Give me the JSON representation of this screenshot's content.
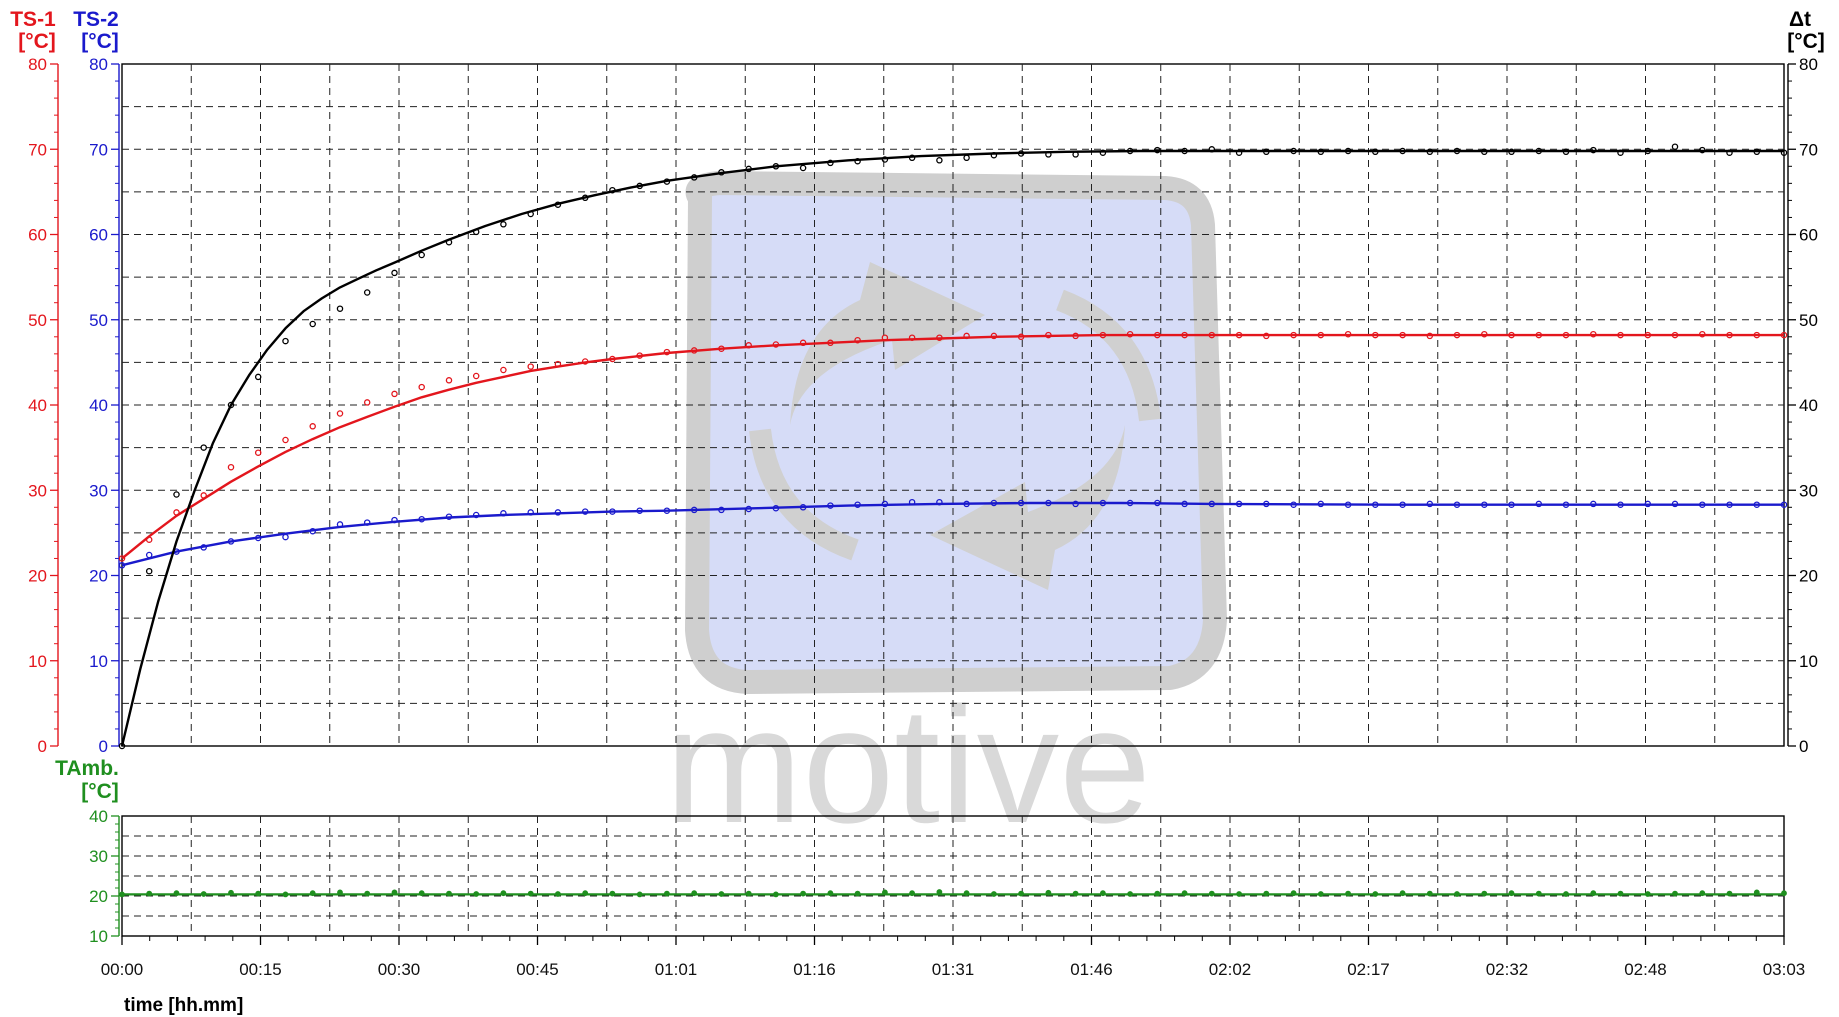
{
  "chart_data": [
    {
      "type": "line",
      "colors": {
        "ts1": "#e3161d",
        "ts2": "#1a1acc",
        "dt": "#000000"
      },
      "axes": {
        "ts1": {
          "title": [
            "TS-1",
            "[°C]"
          ],
          "ticks": [
            "0",
            "10",
            "20",
            "30",
            "40",
            "50",
            "60",
            "70",
            "80"
          ],
          "range": [
            0,
            80
          ]
        },
        "ts2": {
          "title": [
            "TS-2",
            "[°C]"
          ],
          "ticks": [
            "0",
            "10",
            "20",
            "30",
            "40",
            "50",
            "60",
            "70",
            "80"
          ],
          "range": [
            0,
            80
          ]
        },
        "dt": {
          "title": [
            "Δt",
            "[°C]"
          ],
          "ticks": [
            "0",
            "10",
            "20",
            "30",
            "40",
            "50",
            "60",
            "70",
            "80"
          ],
          "range": [
            0,
            80
          ]
        }
      },
      "xlabel": "time [hh.mm]",
      "x_ticks": [
        "00:00",
        "00:15",
        "00:30",
        "00:45",
        "01:01",
        "01:16",
        "01:31",
        "01:46",
        "02:02",
        "02:17",
        "02:32",
        "02:48",
        "03:03"
      ],
      "x_range_min": [
        0,
        183
      ],
      "grid": true,
      "watermark": "motive",
      "series": [
        {
          "key": "ts1",
          "fit_x": [
            0,
            3,
            6,
            9,
            12,
            15,
            18,
            21,
            24,
            27,
            30,
            33,
            36,
            39,
            42,
            45,
            48,
            51,
            54,
            60,
            66,
            72,
            78,
            84,
            90,
            96,
            102,
            108,
            120,
            140,
            160,
            183
          ],
          "fit_values": [
            22,
            24.6,
            27,
            29,
            31,
            32.8,
            34.5,
            36,
            37.4,
            38.6,
            39.8,
            40.9,
            41.8,
            42.6,
            43.3,
            44,
            44.5,
            45,
            45.4,
            46.1,
            46.6,
            47,
            47.3,
            47.6,
            47.8,
            48,
            48.1,
            48.2,
            48.2,
            48.2,
            48.2,
            48.2
          ],
          "points_x": [
            0,
            3,
            6,
            9,
            12,
            15,
            18,
            21,
            24,
            27,
            30,
            33,
            36,
            39,
            42,
            45,
            48,
            51,
            54,
            57,
            60,
            63,
            66,
            69,
            72,
            75,
            78,
            81,
            84,
            87,
            90,
            93,
            96,
            99,
            102,
            105,
            108,
            111,
            114,
            117,
            120,
            123,
            126,
            129,
            132,
            135,
            138,
            141,
            144,
            147,
            150,
            153,
            156,
            159,
            162,
            165,
            168,
            171,
            174,
            177,
            180,
            183
          ],
          "points_values": [
            22,
            24.2,
            27.4,
            29.4,
            32.7,
            34.4,
            35.9,
            37.5,
            39,
            40.3,
            41.3,
            42.1,
            42.9,
            43.4,
            44.1,
            44.5,
            44.8,
            45.1,
            45.4,
            45.8,
            46.2,
            46.4,
            46.6,
            47,
            47.1,
            47.3,
            47.3,
            47.6,
            47.9,
            47.9,
            47.9,
            48.1,
            48.1,
            48,
            48.2,
            48.1,
            48.2,
            48.3,
            48.2,
            48.2,
            48.2,
            48.2,
            48.1,
            48.2,
            48.2,
            48.3,
            48.2,
            48.2,
            48.1,
            48.2,
            48.3,
            48.2,
            48.2,
            48.2,
            48.3,
            48.2,
            48.2,
            48.2,
            48.3,
            48.2,
            48.2,
            48.2
          ]
        },
        {
          "key": "ts2",
          "fit_x": [
            0,
            6,
            12,
            18,
            24,
            30,
            36,
            42,
            48,
            54,
            60,
            70,
            80,
            90,
            100,
            110,
            120,
            140,
            160,
            183
          ],
          "fit_values": [
            21.2,
            22.8,
            24,
            24.9,
            25.7,
            26.3,
            26.8,
            27.1,
            27.3,
            27.5,
            27.6,
            27.9,
            28.2,
            28.4,
            28.5,
            28.5,
            28.4,
            28.3,
            28.3,
            28.3
          ],
          "points_x": [
            0,
            3,
            6,
            9,
            12,
            15,
            18,
            21,
            24,
            27,
            30,
            33,
            36,
            39,
            42,
            45,
            48,
            51,
            54,
            57,
            60,
            63,
            66,
            69,
            72,
            75,
            78,
            81,
            84,
            87,
            90,
            93,
            96,
            99,
            102,
            105,
            108,
            111,
            114,
            117,
            120,
            123,
            126,
            129,
            132,
            135,
            138,
            141,
            144,
            147,
            150,
            153,
            156,
            159,
            162,
            165,
            168,
            171,
            174,
            177,
            180,
            183
          ],
          "points_values": [
            21.2,
            22.4,
            22.8,
            23.3,
            24.0,
            24.4,
            24.5,
            25.2,
            26.0,
            26.2,
            26.5,
            26.6,
            26.9,
            27.1,
            27.3,
            27.4,
            27.4,
            27.5,
            27.5,
            27.6,
            27.6,
            27.7,
            27.7,
            27.8,
            27.9,
            28.0,
            28.2,
            28.3,
            28.4,
            28.6,
            28.6,
            28.4,
            28.5,
            28.5,
            28.5,
            28.4,
            28.5,
            28.5,
            28.5,
            28.4,
            28.4,
            28.4,
            28.4,
            28.3,
            28.4,
            28.3,
            28.3,
            28.3,
            28.4,
            28.3,
            28.3,
            28.3,
            28.4,
            28.3,
            28.4,
            28.3,
            28.4,
            28.4,
            28.3,
            28.3,
            28.3,
            28.3
          ]
        },
        {
          "key": "dt",
          "fit_x": [
            0,
            2,
            4,
            6,
            8,
            10,
            12,
            14,
            16,
            18,
            20,
            22,
            24,
            26,
            28,
            30,
            33,
            36,
            40,
            44,
            48,
            52,
            56,
            60,
            66,
            72,
            80,
            88,
            96,
            104,
            112,
            120,
            140,
            160,
            183
          ],
          "fit_values": [
            0,
            9,
            17,
            24,
            30,
            35.5,
            40,
            43.5,
            46.5,
            49,
            51,
            52.5,
            53.8,
            54.8,
            55.8,
            56.7,
            58.1,
            59.4,
            61,
            62.4,
            63.6,
            64.6,
            65.5,
            66.3,
            67.2,
            68,
            68.7,
            69.2,
            69.5,
            69.7,
            69.8,
            69.8,
            69.8,
            69.8,
            69.8
          ],
          "points_x": [
            0,
            3,
            6,
            9,
            12,
            15,
            18,
            21,
            24,
            27,
            30,
            33,
            36,
            39,
            42,
            45,
            48,
            51,
            54,
            57,
            60,
            63,
            66,
            69,
            72,
            75,
            78,
            81,
            84,
            87,
            90,
            93,
            96,
            99,
            102,
            105,
            108,
            111,
            114,
            117,
            120,
            123,
            126,
            129,
            132,
            135,
            138,
            141,
            144,
            147,
            150,
            153,
            156,
            159,
            162,
            165,
            168,
            171,
            174,
            177,
            180,
            183
          ],
          "points_values": [
            0,
            20.5,
            29.5,
            35,
            40,
            43.3,
            47.5,
            49.5,
            51.3,
            53.2,
            55.5,
            57.6,
            59.1,
            60.3,
            61.2,
            62.4,
            63.5,
            64.3,
            65.2,
            65.7,
            66.2,
            66.7,
            67.3,
            67.7,
            68,
            67.8,
            68.4,
            68.6,
            68.8,
            69,
            68.7,
            69,
            69.3,
            69.5,
            69.4,
            69.4,
            69.6,
            69.8,
            69.9,
            69.8,
            70.0,
            69.6,
            69.7,
            69.8,
            69.7,
            69.8,
            69.7,
            69.8,
            69.7,
            69.8,
            69.7,
            69.7,
            69.8,
            69.7,
            69.9,
            69.6,
            69.8,
            70.3,
            69.9,
            69.6,
            69.7,
            69.6
          ]
        }
      ]
    },
    {
      "type": "line",
      "colors": {
        "tamb": "#1f8f1f"
      },
      "axes": {
        "tamb": {
          "title": [
            "TAmb.",
            "[°C]"
          ],
          "ticks": [
            "10",
            "20",
            "30",
            "40"
          ],
          "range": [
            10,
            40
          ]
        }
      },
      "series": [
        {
          "key": "tamb",
          "fit_x": [
            0,
            183
          ],
          "fit_values": [
            20.4,
            20.4
          ],
          "points_x": [
            0,
            3,
            6,
            9,
            12,
            15,
            18,
            21,
            24,
            27,
            30,
            33,
            36,
            39,
            42,
            45,
            48,
            51,
            54,
            57,
            60,
            63,
            66,
            69,
            72,
            75,
            78,
            81,
            84,
            87,
            90,
            93,
            96,
            99,
            102,
            105,
            108,
            111,
            114,
            117,
            120,
            123,
            126,
            129,
            132,
            135,
            138,
            141,
            144,
            147,
            150,
            153,
            156,
            159,
            162,
            165,
            168,
            171,
            174,
            177,
            180,
            183
          ],
          "points_values": [
            20.4,
            20.6,
            20.7,
            20.5,
            20.8,
            20.6,
            20.4,
            20.7,
            20.9,
            20.6,
            20.9,
            20.7,
            20.6,
            20.5,
            20.7,
            20.6,
            20.5,
            20.7,
            20.6,
            20.4,
            20.6,
            20.7,
            20.5,
            20.6,
            20.4,
            20.6,
            20.7,
            20.6,
            20.9,
            20.7,
            21.0,
            20.7,
            20.5,
            20.6,
            20.8,
            20.6,
            20.7,
            20.5,
            20.6,
            20.7,
            20.6,
            20.5,
            20.6,
            20.7,
            20.5,
            20.6,
            20.5,
            20.7,
            20.6,
            20.5,
            20.6,
            20.7,
            20.6,
            20.5,
            20.7,
            20.6,
            20.5,
            20.6,
            20.7,
            20.6,
            20.9,
            20.7
          ]
        }
      ]
    }
  ]
}
